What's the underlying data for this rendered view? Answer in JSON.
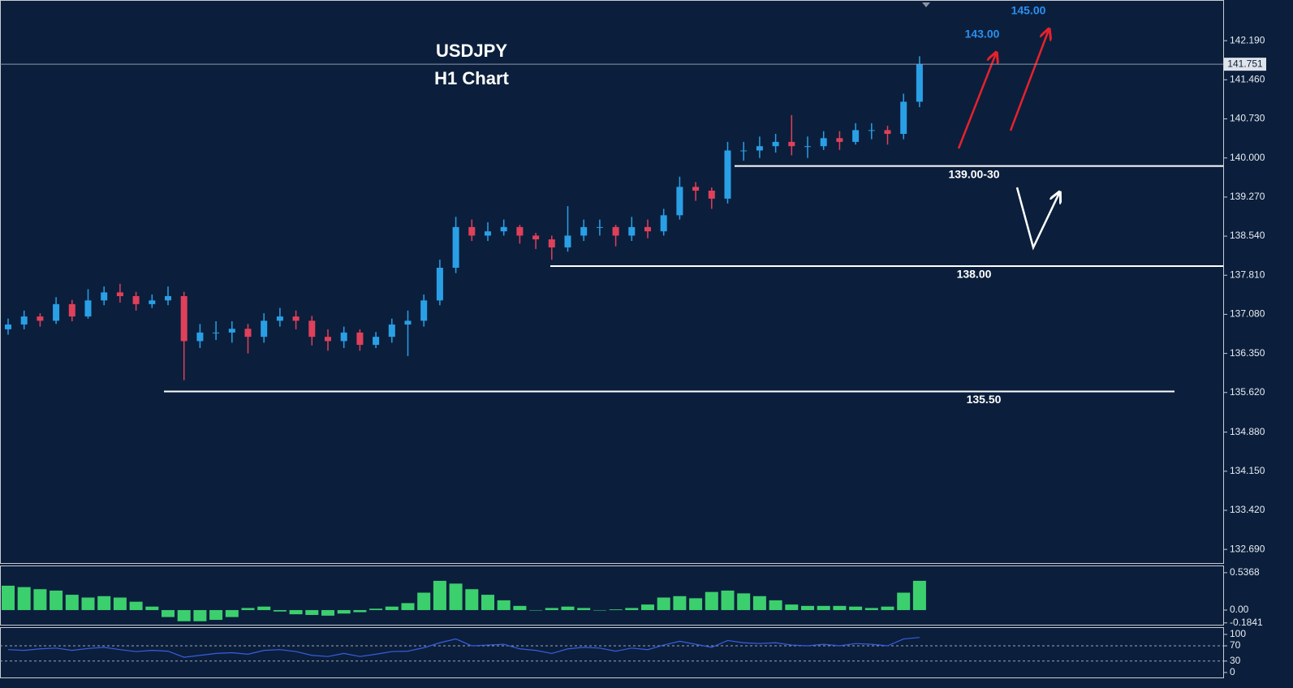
{
  "chart_data": [
    {
      "type": "candlestick",
      "title": "USDJPY",
      "subtitle": "H1 Chart",
      "up_color": "#2a9fe6",
      "down_color": "#e0405a",
      "open": [
        136.8,
        136.89,
        137.04,
        136.96,
        137.27,
        137.04,
        137.34,
        137.49,
        137.42,
        137.27,
        137.34,
        137.42,
        136.58,
        136.74,
        136.74,
        136.81,
        136.66,
        136.96,
        137.04,
        136.96,
        136.66,
        136.58,
        136.74,
        136.51,
        136.66,
        136.89,
        136.96,
        137.34,
        137.95,
        138.71,
        138.55,
        138.63,
        138.71,
        138.55,
        138.48,
        138.33,
        138.55,
        138.71,
        138.71,
        138.55,
        138.71,
        138.63,
        138.93,
        139.46,
        139.39,
        139.24,
        140.14,
        140.14,
        140.22,
        140.3,
        140.22,
        140.22,
        140.37,
        140.3,
        140.52,
        140.52,
        140.45,
        141.05
      ],
      "high": [
        137.0,
        137.15,
        137.1,
        137.4,
        137.35,
        137.55,
        137.6,
        137.65,
        137.5,
        137.45,
        137.6,
        137.5,
        136.9,
        136.95,
        136.95,
        136.9,
        137.1,
        137.2,
        137.15,
        137.05,
        136.8,
        136.85,
        136.8,
        136.75,
        137.0,
        137.15,
        137.45,
        138.1,
        138.9,
        138.85,
        138.8,
        138.85,
        138.75,
        138.6,
        138.55,
        139.1,
        138.85,
        138.85,
        138.75,
        138.9,
        138.85,
        139.05,
        139.65,
        139.55,
        139.45,
        140.3,
        140.3,
        140.4,
        140.45,
        140.8,
        140.4,
        140.5,
        140.5,
        140.65,
        140.65,
        140.6,
        141.2,
        141.9
      ],
      "low": [
        136.7,
        136.8,
        136.85,
        136.9,
        136.95,
        137.0,
        137.25,
        137.3,
        137.15,
        137.2,
        137.25,
        135.85,
        136.45,
        136.6,
        136.55,
        136.35,
        136.55,
        136.85,
        136.8,
        136.5,
        136.4,
        136.45,
        136.4,
        136.45,
        136.55,
        136.3,
        136.85,
        137.25,
        137.85,
        138.45,
        138.45,
        138.55,
        138.4,
        138.3,
        138.1,
        138.25,
        138.45,
        138.55,
        138.35,
        138.45,
        138.5,
        138.55,
        138.85,
        139.2,
        139.05,
        139.15,
        139.95,
        140.0,
        140.1,
        140.05,
        140.0,
        140.15,
        140.15,
        140.25,
        140.35,
        140.25,
        140.35,
        140.95
      ],
      "close": [
        136.89,
        137.04,
        136.96,
        137.27,
        137.04,
        137.34,
        137.49,
        137.42,
        137.27,
        137.34,
        137.42,
        136.58,
        136.74,
        136.74,
        136.81,
        136.66,
        136.96,
        137.04,
        136.96,
        136.66,
        136.58,
        136.74,
        136.51,
        136.66,
        136.89,
        136.96,
        137.34,
        137.95,
        138.71,
        138.55,
        138.63,
        138.71,
        138.55,
        138.48,
        138.33,
        138.55,
        138.71,
        138.71,
        138.55,
        138.71,
        138.63,
        138.93,
        139.46,
        139.39,
        139.24,
        140.14,
        140.14,
        140.22,
        140.3,
        140.22,
        140.22,
        140.37,
        140.3,
        140.52,
        140.52,
        140.45,
        141.05,
        141.75
      ],
      "ylim": [
        132.42,
        142.95
      ],
      "yticks": [
        {
          "value": 142.19,
          "label": "142.190"
        },
        {
          "value": 141.46,
          "label": "141.460"
        },
        {
          "value": 140.73,
          "label": "140.730"
        },
        {
          "value": 140,
          "label": "140.000"
        },
        {
          "value": 139.27,
          "label": "139.270"
        },
        {
          "value": 138.54,
          "label": "138.540"
        },
        {
          "value": 137.81,
          "label": "137.810"
        },
        {
          "value": 137.08,
          "label": "137.080"
        },
        {
          "value": 136.35,
          "label": "136.350"
        },
        {
          "value": 135.62,
          "label": "135.620"
        },
        {
          "value": 134.88,
          "label": "134.880"
        },
        {
          "value": 134.15,
          "label": "134.150"
        },
        {
          "value": 133.42,
          "label": "133.420"
        },
        {
          "value": 132.69,
          "label": "132.690"
        }
      ],
      "current_price": {
        "value": 141.751,
        "label": "141.751"
      },
      "levels": [
        {
          "value": 139.85,
          "label": "139.00-30"
        },
        {
          "value": 137.98,
          "label": "138.00"
        },
        {
          "value": 135.64,
          "label": "135.50"
        }
      ],
      "targets": [
        "143.00",
        "145.00"
      ]
    },
    {
      "type": "histogram",
      "color": "#3ccf6e",
      "values": [
        0.35,
        0.33,
        0.3,
        0.28,
        0.22,
        0.18,
        0.2,
        0.18,
        0.12,
        0.05,
        -0.1,
        -0.16,
        -0.16,
        -0.14,
        -0.1,
        0.03,
        0.05,
        -0.02,
        -0.06,
        -0.07,
        -0.08,
        -0.05,
        -0.03,
        0.02,
        0.05,
        0.1,
        0.25,
        0.42,
        0.38,
        0.3,
        0.22,
        0.14,
        0.06,
        0.0,
        0.03,
        0.05,
        0.03,
        0.0,
        0.01,
        0.03,
        0.08,
        0.18,
        0.2,
        0.17,
        0.26,
        0.28,
        0.24,
        0.2,
        0.14,
        0.08,
        0.06,
        0.06,
        0.06,
        0.05,
        0.03,
        0.05,
        0.25,
        0.42
      ],
      "ylim": [
        -0.21,
        0.64
      ],
      "yticks": [
        0.5368,
        {
          "value": 0,
          "label": "0.00"
        },
        -0.1841
      ]
    },
    {
      "type": "line",
      "color": "#3a5de0",
      "values": [
        60,
        58,
        62,
        64,
        58,
        63,
        66,
        60,
        55,
        58,
        56,
        40,
        45,
        50,
        52,
        48,
        58,
        60,
        55,
        45,
        42,
        50,
        42,
        48,
        55,
        56,
        65,
        78,
        88,
        70,
        72,
        74,
        62,
        58,
        50,
        62,
        66,
        64,
        56,
        64,
        60,
        72,
        82,
        74,
        66,
        84,
        78,
        76,
        78,
        72,
        70,
        74,
        70,
        76,
        74,
        70,
        88,
        92
      ],
      "ylim": [
        -13,
        119
      ],
      "yticks": [
        100,
        70,
        30,
        0
      ]
    }
  ]
}
